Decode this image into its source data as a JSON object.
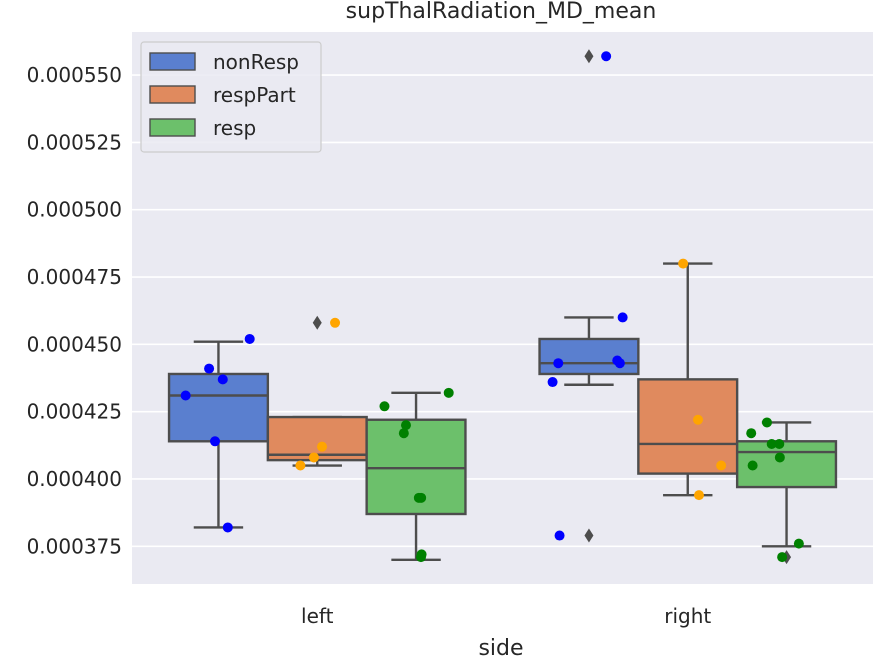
{
  "chart_data": {
    "type": "box",
    "title": "supThalRadiation_MD_mean",
    "xlabel": "side",
    "ylabel": "",
    "ylim": [
      0.000361,
      0.000566
    ],
    "yticks": [
      0.000375,
      0.0004,
      0.000425,
      0.00045,
      0.000475,
      0.0005,
      0.000525,
      0.00055
    ],
    "ytick_labels": [
      "0.000375",
      "0.000400",
      "0.000425",
      "0.000450",
      "0.000475",
      "0.000500",
      "0.000525",
      "0.000550"
    ],
    "categories": [
      "left",
      "right"
    ],
    "legend": {
      "position": "top-left",
      "entries": [
        "nonResp",
        "respPart",
        "resp"
      ]
    },
    "grid": true,
    "series": [
      {
        "name": "nonResp",
        "color": "#5a7fcf",
        "boxes": [
          {
            "category": "left",
            "whisker_low": 0.000382,
            "q1": 0.000414,
            "median": 0.000431,
            "q3": 0.000439,
            "whisker_high": 0.000451,
            "outliers": []
          },
          {
            "category": "right",
            "whisker_low": 0.000435,
            "q1": 0.000439,
            "median": 0.000443,
            "q3": 0.000452,
            "whisker_high": 0.00046,
            "outliers": [
              0.000379,
              0.000557
            ]
          }
        ]
      },
      {
        "name": "respPart",
        "color": "#e08a5e",
        "boxes": [
          {
            "category": "left",
            "whisker_low": 0.000405,
            "q1": 0.000407,
            "median": 0.000409,
            "q3": 0.000423,
            "whisker_high": 0.000423,
            "outliers": [
              0.000458
            ]
          },
          {
            "category": "right",
            "whisker_low": 0.000394,
            "q1": 0.000402,
            "median": 0.000413,
            "q3": 0.000437,
            "whisker_high": 0.00048,
            "outliers": []
          }
        ]
      },
      {
        "name": "resp",
        "color": "#6cc06b",
        "boxes": [
          {
            "category": "left",
            "whisker_low": 0.00037,
            "q1": 0.000387,
            "median": 0.000404,
            "q3": 0.000422,
            "whisker_high": 0.000432,
            "outliers": []
          },
          {
            "category": "right",
            "whisker_low": 0.000375,
            "q1": 0.000397,
            "median": 0.00041,
            "q3": 0.000414,
            "whisker_high": 0.000421,
            "outliers": [
              0.000371
            ]
          }
        ]
      }
    ],
    "points": [
      {
        "group": "nonResp",
        "color": "#0000ff",
        "category": "left",
        "values": [
          0.000452,
          0.000431,
          0.000437,
          0.000441,
          0.000414,
          0.000382
        ]
      },
      {
        "group": "respPart",
        "color": "#ffa500",
        "category": "left",
        "values": [
          0.000458,
          0.000412,
          0.000408,
          0.000405
        ]
      },
      {
        "group": "resp",
        "color": "#008000",
        "category": "left",
        "values": [
          0.000427,
          0.00042,
          0.000417,
          0.000432,
          0.000393,
          0.000393,
          0.000371,
          0.000372
        ]
      },
      {
        "group": "nonResp",
        "color": "#0000ff",
        "category": "right",
        "values": [
          0.000557,
          0.00046,
          0.000444,
          0.000443,
          0.000443,
          0.000436,
          0.000379
        ]
      },
      {
        "group": "respPart",
        "color": "#ffa500",
        "category": "right",
        "values": [
          0.00048,
          0.000422,
          0.000405,
          0.000394
        ]
      },
      {
        "group": "resp",
        "color": "#008000",
        "category": "right",
        "values": [
          0.000421,
          0.000417,
          0.000413,
          0.000413,
          0.000408,
          0.000405,
          0.000376,
          0.000371
        ]
      }
    ]
  }
}
